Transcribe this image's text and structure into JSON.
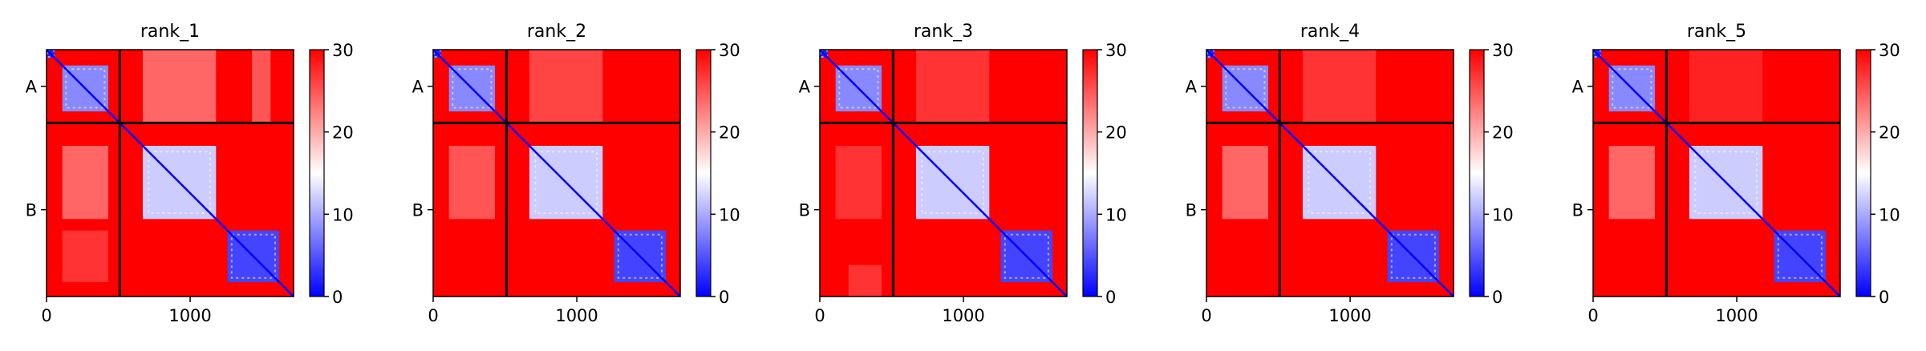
{
  "chart_data": [
    {
      "type": "heatmap",
      "title": "rank_1",
      "row_labels": [
        "A",
        "B"
      ],
      "x_ticks": [
        0,
        1000
      ],
      "x_range": [
        0,
        1720
      ],
      "chain_boundary": 510,
      "colorbar": {
        "min": 0,
        "max": 30,
        "ticks": [
          0,
          10,
          20,
          30
        ],
        "colormap": "bwr"
      },
      "blocks": [
        {
          "start": 0,
          "end": 55,
          "value": 2
        },
        {
          "start": 110,
          "end": 430,
          "value": 8
        },
        {
          "start": 670,
          "end": 1180,
          "value": 12
        },
        {
          "start": 1260,
          "end": 1620,
          "value": 4
        }
      ],
      "offdiag_patches": [
        {
          "rows": [
            0,
            510
          ],
          "cols": [
            670,
            1180
          ],
          "value": 24
        },
        {
          "rows": [
            0,
            510
          ],
          "cols": [
            1430,
            1560
          ],
          "value": 25
        },
        {
          "rows": [
            670,
            1180
          ],
          "cols": [
            110,
            430
          ],
          "value": 24
        },
        {
          "rows": [
            1260,
            1620
          ],
          "cols": [
            110,
            430
          ],
          "value": 27
        }
      ]
    },
    {
      "type": "heatmap",
      "title": "rank_2",
      "row_labels": [
        "A",
        "B"
      ],
      "x_ticks": [
        0,
        1000
      ],
      "x_range": [
        0,
        1720
      ],
      "chain_boundary": 510,
      "colorbar": {
        "min": 0,
        "max": 30,
        "ticks": [
          0,
          10,
          20,
          30
        ],
        "colormap": "bwr"
      },
      "blocks": [
        {
          "start": 0,
          "end": 55,
          "value": 2
        },
        {
          "start": 110,
          "end": 430,
          "value": 8
        },
        {
          "start": 670,
          "end": 1180,
          "value": 12
        },
        {
          "start": 1260,
          "end": 1620,
          "value": 4
        }
      ],
      "offdiag_patches": [
        {
          "rows": [
            0,
            510
          ],
          "cols": [
            670,
            1180
          ],
          "value": 26
        },
        {
          "rows": [
            670,
            1180
          ],
          "cols": [
            110,
            430
          ],
          "value": 25
        }
      ]
    },
    {
      "type": "heatmap",
      "title": "rank_3",
      "row_labels": [
        "A",
        "B"
      ],
      "x_ticks": [
        0,
        1000
      ],
      "x_range": [
        0,
        1720
      ],
      "chain_boundary": 510,
      "colorbar": {
        "min": 0,
        "max": 30,
        "ticks": [
          0,
          10,
          20,
          30
        ],
        "colormap": "bwr"
      },
      "blocks": [
        {
          "start": 0,
          "end": 55,
          "value": 2
        },
        {
          "start": 110,
          "end": 430,
          "value": 8
        },
        {
          "start": 670,
          "end": 1180,
          "value": 12
        },
        {
          "start": 1260,
          "end": 1620,
          "value": 4
        }
      ],
      "offdiag_patches": [
        {
          "rows": [
            0,
            510
          ],
          "cols": [
            670,
            1180
          ],
          "value": 27
        },
        {
          "rows": [
            670,
            1180
          ],
          "cols": [
            110,
            430
          ],
          "value": 27
        },
        {
          "rows": [
            1500,
            1720
          ],
          "cols": [
            200,
            430
          ],
          "value": 27
        }
      ]
    },
    {
      "type": "heatmap",
      "title": "rank_4",
      "row_labels": [
        "A",
        "B"
      ],
      "x_ticks": [
        0,
        1000
      ],
      "x_range": [
        0,
        1720
      ],
      "chain_boundary": 510,
      "colorbar": {
        "min": 0,
        "max": 30,
        "ticks": [
          0,
          10,
          20,
          30
        ],
        "colormap": "bwr"
      },
      "blocks": [
        {
          "start": 0,
          "end": 55,
          "value": 2
        },
        {
          "start": 110,
          "end": 430,
          "value": 8
        },
        {
          "start": 670,
          "end": 1180,
          "value": 12
        },
        {
          "start": 1260,
          "end": 1620,
          "value": 4
        }
      ],
      "offdiag_patches": [
        {
          "rows": [
            0,
            510
          ],
          "cols": [
            670,
            1180
          ],
          "value": 27
        },
        {
          "rows": [
            670,
            1180
          ],
          "cols": [
            110,
            430
          ],
          "value": 24
        }
      ]
    },
    {
      "type": "heatmap",
      "title": "rank_5",
      "row_labels": [
        "A",
        "B"
      ],
      "x_ticks": [
        0,
        1000
      ],
      "x_range": [
        0,
        1720
      ],
      "chain_boundary": 510,
      "colorbar": {
        "min": 0,
        "max": 30,
        "ticks": [
          0,
          10,
          20,
          30
        ],
        "colormap": "bwr"
      },
      "blocks": [
        {
          "start": 0,
          "end": 55,
          "value": 2
        },
        {
          "start": 110,
          "end": 430,
          "value": 8
        },
        {
          "start": 670,
          "end": 1180,
          "value": 12
        },
        {
          "start": 1260,
          "end": 1620,
          "value": 4
        }
      ],
      "offdiag_patches": [
        {
          "rows": [
            0,
            510
          ],
          "cols": [
            670,
            1180
          ],
          "value": 28
        },
        {
          "rows": [
            670,
            1180
          ],
          "cols": [
            110,
            430
          ],
          "value": 24
        }
      ]
    }
  ]
}
